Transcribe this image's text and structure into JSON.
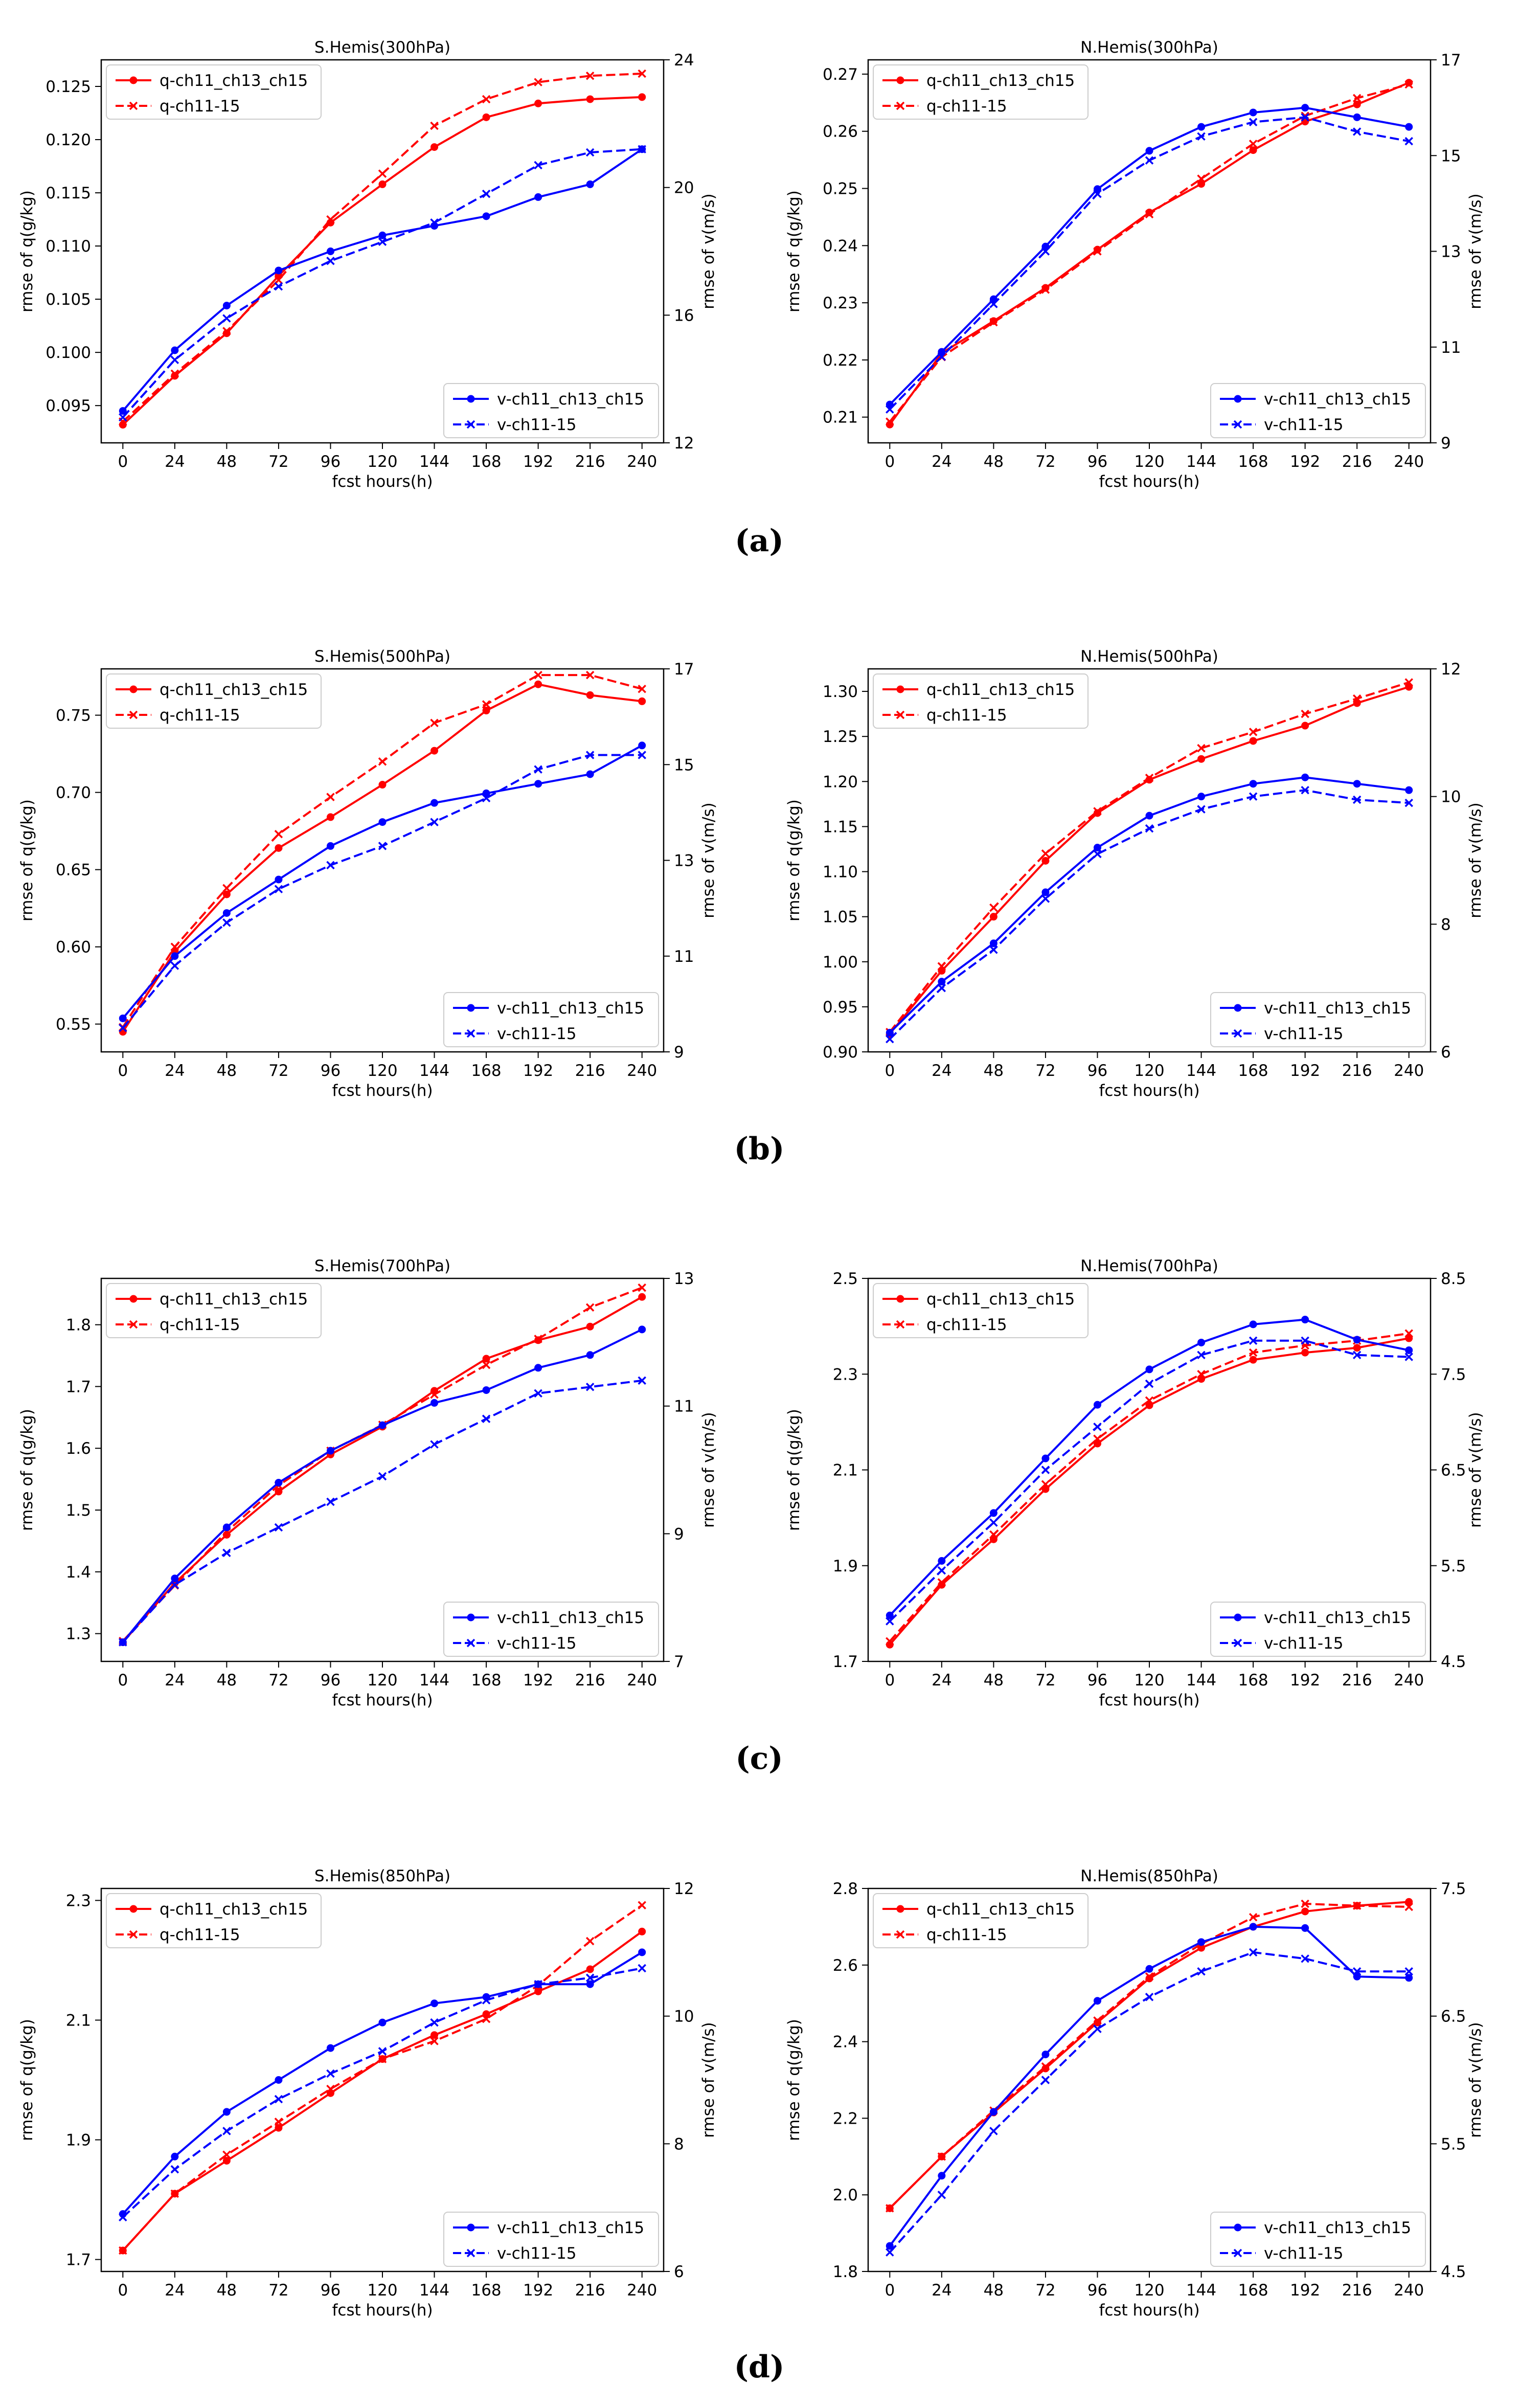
{
  "colors": {
    "q": "#ff0000",
    "v": "#0000ff",
    "axis": "#000000"
  },
  "x_axis": {
    "label": "fcst hours(h)",
    "ticks": [
      0,
      24,
      48,
      72,
      96,
      120,
      144,
      168,
      192,
      216,
      240
    ],
    "xlim": [
      -10,
      250
    ]
  },
  "y_left_label": "rmse of q(g/kg)",
  "y_right_label": "rmse of v(m/s)",
  "legend": {
    "q_solid": "q-ch11_ch13_ch15",
    "q_dashed": "q-ch11-15",
    "v_solid": "v-ch11_ch13_ch15",
    "v_dashed": "v-ch11-15"
  },
  "panel_labels": [
    "(a)",
    "(b)",
    "(c)",
    "(d)"
  ],
  "chart_data": [
    {
      "type": "line",
      "title": "S.Hemis(300hPa)",
      "xlabel": "fcst hours(h)",
      "ylabel": "rmse of q(g/kg)",
      "y2label": "rmse of v(m/s)",
      "x": [
        0,
        24,
        48,
        72,
        96,
        120,
        144,
        168,
        192,
        216,
        240
      ],
      "ylim": [
        0.0915,
        0.1275
      ],
      "yticks": [
        "0.095",
        "0.100",
        "0.105",
        "0.110",
        "0.115",
        "0.120",
        "0.125"
      ],
      "y2lim": [
        12,
        24
      ],
      "y2ticks": [
        "12",
        "16",
        "20",
        "24"
      ],
      "series": [
        {
          "name": "q-ch11_ch13_ch15",
          "axis": "left",
          "style": "solid",
          "values": [
            0.0932,
            0.0978,
            0.1018,
            0.1072,
            0.1122,
            0.1158,
            0.1193,
            0.1221,
            0.1234,
            0.1238,
            0.124
          ]
        },
        {
          "name": "q-ch11-15",
          "axis": "left",
          "style": "dashed",
          "values": [
            0.0935,
            0.098,
            0.102,
            0.1068,
            0.1125,
            0.1168,
            0.1213,
            0.1238,
            0.1254,
            0.126,
            0.1262
          ]
        },
        {
          "name": "v-ch11_ch13_ch15",
          "axis": "right",
          "style": "solid",
          "values": [
            13.0,
            14.9,
            16.3,
            17.4,
            18.0,
            18.5,
            18.8,
            19.1,
            19.7,
            20.1,
            21.2
          ]
        },
        {
          "name": "v-ch11-15",
          "axis": "right",
          "style": "dashed",
          "values": [
            12.8,
            14.6,
            15.9,
            16.9,
            17.7,
            18.3,
            18.9,
            19.8,
            20.7,
            21.1,
            21.2
          ]
        }
      ]
    },
    {
      "type": "line",
      "title": "N.Hemis(300hPa)",
      "xlabel": "fcst hours(h)",
      "ylabel": "rmse of q(g/kg)",
      "y2label": "rmse of v(m/s)",
      "x": [
        0,
        24,
        48,
        72,
        96,
        120,
        144,
        168,
        192,
        216,
        240
      ],
      "ylim": [
        0.2055,
        0.2725
      ],
      "yticks": [
        "0.21",
        "0.22",
        "0.23",
        "0.24",
        "0.25",
        "0.26",
        "0.27"
      ],
      "y2lim": [
        9,
        17
      ],
      "y2ticks": [
        "9",
        "11",
        "13",
        "15",
        "17"
      ],
      "series": [
        {
          "name": "q-ch11_ch13_ch15",
          "axis": "left",
          "style": "solid",
          "values": [
            0.2087,
            0.2212,
            0.2268,
            0.2326,
            0.2393,
            0.2458,
            0.2508,
            0.2567,
            0.2617,
            0.2647,
            0.2685
          ]
        },
        {
          "name": "q-ch11-15",
          "axis": "left",
          "style": "dashed",
          "values": [
            0.2092,
            0.2205,
            0.2266,
            0.2323,
            0.239,
            0.2455,
            0.2517,
            0.2578,
            0.2627,
            0.2658,
            0.2682
          ]
        },
        {
          "name": "v-ch11_ch13_ch15",
          "axis": "right",
          "style": "solid",
          "values": [
            9.8,
            10.9,
            12.0,
            13.1,
            14.3,
            15.1,
            15.6,
            15.9,
            16.0,
            15.8,
            15.6
          ]
        },
        {
          "name": "v-ch11-15",
          "axis": "right",
          "style": "dashed",
          "values": [
            9.7,
            10.8,
            11.9,
            13.0,
            14.2,
            14.9,
            15.4,
            15.7,
            15.8,
            15.5,
            15.3
          ]
        }
      ]
    },
    {
      "type": "line",
      "title": "S.Hemis(500hPa)",
      "xlabel": "fcst hours(h)",
      "ylabel": "rmse of q(g/kg)",
      "y2label": "rmse of v(m/s)",
      "x": [
        0,
        24,
        48,
        72,
        96,
        120,
        144,
        168,
        192,
        216,
        240
      ],
      "ylim": [
        0.532,
        0.78
      ],
      "yticks": [
        "0.55",
        "0.60",
        "0.65",
        "0.70",
        "0.75"
      ],
      "y2lim": [
        9,
        17
      ],
      "y2ticks": [
        "9",
        "11",
        "13",
        "15",
        "17"
      ],
      "series": [
        {
          "name": "q-ch11_ch13_ch15",
          "axis": "left",
          "style": "solid",
          "values": [
            0.545,
            0.597,
            0.634,
            0.664,
            0.684,
            0.705,
            0.727,
            0.753,
            0.77,
            0.763,
            0.759
          ]
        },
        {
          "name": "q-ch11-15",
          "axis": "left",
          "style": "dashed",
          "values": [
            0.548,
            0.6,
            0.638,
            0.673,
            0.697,
            0.72,
            0.745,
            0.757,
            0.776,
            0.776,
            0.767
          ]
        },
        {
          "name": "v-ch11_ch13_ch15",
          "axis": "right",
          "style": "solid",
          "values": [
            9.7,
            11.0,
            11.9,
            12.6,
            13.3,
            13.8,
            14.2,
            14.4,
            14.6,
            14.8,
            15.4
          ]
        },
        {
          "name": "v-ch11-15",
          "axis": "right",
          "style": "dashed",
          "values": [
            9.5,
            10.8,
            11.7,
            12.4,
            12.9,
            13.3,
            13.8,
            14.3,
            14.9,
            15.2,
            15.2
          ]
        }
      ]
    },
    {
      "type": "line",
      "title": "N.Hemis(500hPa)",
      "xlabel": "fcst hours(h)",
      "ylabel": "rmse of q(g/kg)",
      "y2label": "rmse of v(m/s)",
      "x": [
        0,
        24,
        48,
        72,
        96,
        120,
        144,
        168,
        192,
        216,
        240
      ],
      "ylim": [
        0.9,
        1.325
      ],
      "yticks": [
        "0.90",
        "0.95",
        "1.00",
        "1.05",
        "1.10",
        "1.15",
        "1.20",
        "1.25",
        "1.30"
      ],
      "y2lim": [
        6,
        12
      ],
      "y2ticks": [
        "6",
        "8",
        "10",
        "12"
      ],
      "series": [
        {
          "name": "q-ch11_ch13_ch15",
          "axis": "left",
          "style": "solid",
          "values": [
            0.92,
            0.99,
            1.05,
            1.112,
            1.165,
            1.202,
            1.225,
            1.245,
            1.262,
            1.287,
            1.305
          ]
        },
        {
          "name": "q-ch11-15",
          "axis": "left",
          "style": "dashed",
          "values": [
            0.922,
            0.995,
            1.06,
            1.12,
            1.167,
            1.204,
            1.237,
            1.255,
            1.275,
            1.292,
            1.31
          ]
        },
        {
          "name": "v-ch11_ch13_ch15",
          "axis": "right",
          "style": "solid",
          "values": [
            6.3,
            7.1,
            7.7,
            8.5,
            9.2,
            9.7,
            10.0,
            10.2,
            10.3,
            10.2,
            10.1
          ]
        },
        {
          "name": "v-ch11-15",
          "axis": "right",
          "style": "dashed",
          "values": [
            6.2,
            7.0,
            7.6,
            8.4,
            9.1,
            9.5,
            9.8,
            10.0,
            10.1,
            9.95,
            9.9
          ]
        }
      ]
    },
    {
      "type": "line",
      "title": "S.Hemis(700hPa)",
      "xlabel": "fcst hours(h)",
      "ylabel": "rmse of q(g/kg)",
      "y2label": "rmse of v(m/s)",
      "x": [
        0,
        24,
        48,
        72,
        96,
        120,
        144,
        168,
        192,
        216,
        240
      ],
      "ylim": [
        1.255,
        1.875
      ],
      "yticks": [
        "1.3",
        "1.4",
        "1.5",
        "1.6",
        "1.7",
        "1.8"
      ],
      "y2lim": [
        7,
        13
      ],
      "y2ticks": [
        "7",
        "9",
        "11",
        "13"
      ],
      "series": [
        {
          "name": "q-ch11_ch13_ch15",
          "axis": "left",
          "style": "solid",
          "values": [
            1.286,
            1.382,
            1.46,
            1.53,
            1.59,
            1.635,
            1.693,
            1.745,
            1.775,
            1.797,
            1.845
          ]
        },
        {
          "name": "q-ch11-15",
          "axis": "left",
          "style": "dashed",
          "values": [
            1.288,
            1.378,
            1.465,
            1.54,
            1.596,
            1.638,
            1.687,
            1.735,
            1.777,
            1.828,
            1.86
          ]
        },
        {
          "name": "v-ch11_ch13_ch15",
          "axis": "right",
          "style": "solid",
          "values": [
            7.3,
            8.3,
            9.1,
            9.8,
            10.3,
            10.7,
            11.05,
            11.25,
            11.6,
            11.8,
            12.2
          ]
        },
        {
          "name": "v-ch11-15",
          "axis": "right",
          "style": "dashed",
          "values": [
            7.3,
            8.2,
            8.7,
            9.1,
            9.5,
            9.9,
            10.4,
            10.8,
            11.2,
            11.3,
            11.4
          ]
        }
      ]
    },
    {
      "type": "line",
      "title": "N.Hemis(700hPa)",
      "xlabel": "fcst hours(h)",
      "ylabel": "rmse of q(g/kg)",
      "y2label": "rmse of v(m/s)",
      "x": [
        0,
        24,
        48,
        72,
        96,
        120,
        144,
        168,
        192,
        216,
        240
      ],
      "ylim": [
        1.7,
        2.5
      ],
      "yticks": [
        "1.7",
        "1.9",
        "2.1",
        "2.3",
        "2.5"
      ],
      "y2lim": [
        4.5,
        8.5
      ],
      "y2ticks": [
        "4.5",
        "5.5",
        "6.5",
        "7.5",
        "8.5"
      ],
      "series": [
        {
          "name": "q-ch11_ch13_ch15",
          "axis": "left",
          "style": "solid",
          "values": [
            1.735,
            1.86,
            1.955,
            2.06,
            2.155,
            2.235,
            2.29,
            2.33,
            2.345,
            2.355,
            2.375
          ]
        },
        {
          "name": "q-ch11-15",
          "axis": "left",
          "style": "dashed",
          "values": [
            1.742,
            1.865,
            1.965,
            2.07,
            2.165,
            2.245,
            2.3,
            2.345,
            2.36,
            2.37,
            2.385
          ]
        },
        {
          "name": "v-ch11_ch13_ch15",
          "axis": "right",
          "style": "solid",
          "values": [
            4.98,
            5.55,
            6.05,
            6.62,
            7.18,
            7.55,
            7.83,
            8.02,
            8.07,
            7.86,
            7.75
          ]
        },
        {
          "name": "v-ch11-15",
          "axis": "right",
          "style": "dashed",
          "values": [
            4.92,
            5.45,
            5.95,
            6.5,
            6.95,
            7.4,
            7.7,
            7.85,
            7.85,
            7.7,
            7.68
          ]
        }
      ]
    },
    {
      "type": "line",
      "title": "S.Hemis(850hPa)",
      "xlabel": "fcst hours(h)",
      "ylabel": "rmse of q(g/kg)",
      "y2label": "rmse of v(m/s)",
      "x": [
        0,
        24,
        48,
        72,
        96,
        120,
        144,
        168,
        192,
        216,
        240
      ],
      "ylim": [
        1.68,
        2.32
      ],
      "yticks": [
        "1.7",
        "1.9",
        "2.1",
        "2.3"
      ],
      "y2lim": [
        6,
        12
      ],
      "y2ticks": [
        "6",
        "8",
        "10",
        "12"
      ],
      "series": [
        {
          "name": "q-ch11_ch13_ch15",
          "axis": "left",
          "style": "solid",
          "values": [
            1.715,
            1.81,
            1.865,
            1.92,
            1.978,
            2.035,
            2.075,
            2.11,
            2.148,
            2.185,
            2.248
          ]
        },
        {
          "name": "q-ch11-15",
          "axis": "left",
          "style": "dashed",
          "values": [
            1.715,
            1.81,
            1.875,
            1.93,
            1.985,
            2.035,
            2.065,
            2.102,
            2.158,
            2.232,
            2.292
          ]
        },
        {
          "name": "v-ch11_ch13_ch15",
          "axis": "right",
          "style": "solid",
          "values": [
            6.9,
            7.8,
            8.5,
            9.0,
            9.5,
            9.9,
            10.2,
            10.3,
            10.5,
            10.5,
            11.0
          ]
        },
        {
          "name": "v-ch11-15",
          "axis": "right",
          "style": "dashed",
          "values": [
            6.85,
            7.6,
            8.2,
            8.7,
            9.1,
            9.45,
            9.9,
            10.25,
            10.5,
            10.6,
            10.75
          ]
        }
      ]
    },
    {
      "type": "line",
      "title": "N.Hemis(850hPa)",
      "xlabel": "fcst hours(h)",
      "ylabel": "rmse of q(g/kg)",
      "y2label": "rmse of v(m/s)",
      "x": [
        0,
        24,
        48,
        72,
        96,
        120,
        144,
        168,
        192,
        216,
        240
      ],
      "ylim": [
        1.8,
        2.8
      ],
      "yticks": [
        "1.8",
        "2.0",
        "2.2",
        "2.4",
        "2.6",
        "2.8"
      ],
      "y2lim": [
        4.5,
        7.5
      ],
      "y2ticks": [
        "4.5",
        "5.5",
        "6.5",
        "7.5"
      ],
      "series": [
        {
          "name": "q-ch11_ch13_ch15",
          "axis": "left",
          "style": "solid",
          "values": [
            1.965,
            2.1,
            2.215,
            2.33,
            2.45,
            2.565,
            2.645,
            2.7,
            2.74,
            2.755,
            2.765
          ]
        },
        {
          "name": "q-ch11-15",
          "axis": "left",
          "style": "dashed",
          "values": [
            1.965,
            2.1,
            2.22,
            2.335,
            2.455,
            2.57,
            2.655,
            2.725,
            2.76,
            2.755,
            2.752
          ]
        },
        {
          "name": "v-ch11_ch13_ch15",
          "axis": "right",
          "style": "solid",
          "values": [
            4.7,
            5.25,
            5.75,
            6.2,
            6.62,
            6.87,
            7.08,
            7.2,
            7.19,
            6.81,
            6.8
          ]
        },
        {
          "name": "v-ch11-15",
          "axis": "right",
          "style": "dashed",
          "values": [
            4.65,
            5.1,
            5.6,
            6.0,
            6.4,
            6.65,
            6.85,
            7.0,
            6.95,
            6.85,
            6.85
          ]
        }
      ]
    }
  ]
}
